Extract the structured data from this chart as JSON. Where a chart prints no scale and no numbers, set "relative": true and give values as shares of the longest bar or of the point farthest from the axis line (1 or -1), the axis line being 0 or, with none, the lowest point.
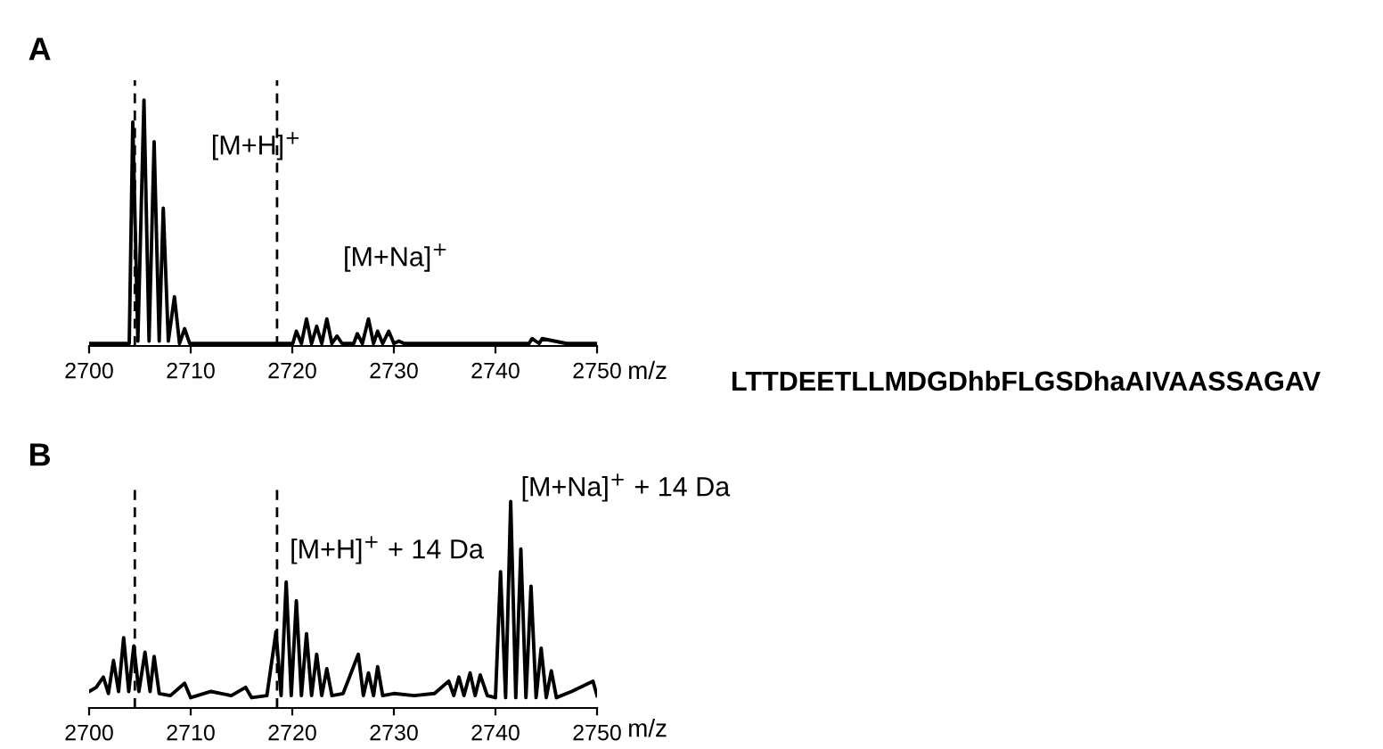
{
  "chart_data": [
    {
      "type": "line",
      "title": "A",
      "xlabel": "m/z",
      "relative": true,
      "xlim": [
        2700,
        2750
      ],
      "xticks": [
        2700,
        2710,
        2720,
        2730,
        2740,
        2750
      ],
      "grid": false,
      "legend": false,
      "marker": "none",
      "line_style": "solid",
      "tick_labels": "x",
      "ref_lines": [
        {
          "axis": "x",
          "value": 2704.5,
          "line_style": "dashed",
          "color": "#000000"
        },
        {
          "axis": "x",
          "value": 2718.5,
          "line_style": "dashed",
          "color": "#000000"
        }
      ],
      "annotations": [
        "[M+H]$^{+}$",
        "[M+Na]$^{+}$",
        "LTTDEETLLMDGDhbFLGSDhaAIVAASSAGAV"
      ],
      "series": [
        {
          "color": "#000000",
          "x": [
            2700,
            2702,
            2703.95,
            2704.3,
            2704.8,
            2705.4,
            2705.9,
            2706.4,
            2706.9,
            2707.3,
            2707.8,
            2708.4,
            2708.9,
            2709.4,
            2709.9,
            2712,
            2715,
            2718,
            2720.05,
            2720.4,
            2720.9,
            2721.4,
            2721.9,
            2722.4,
            2722.9,
            2723.4,
            2723.9,
            2724.4,
            2724.9,
            2726.05,
            2726.4,
            2726.9,
            2727.5,
            2728.0,
            2728.4,
            2728.9,
            2729.5,
            2730.0,
            2730.5,
            2731,
            2734,
            2738,
            2743.3,
            2743.6,
            2744.3,
            2744.6,
            2747,
            2750
          ],
          "values": [
            0.01,
            0.01,
            0.01,
            0.91,
            0.02,
            1.0,
            0.02,
            0.83,
            0.02,
            0.56,
            0.02,
            0.2,
            0.01,
            0.07,
            0.01,
            0.01,
            0.01,
            0.01,
            0.01,
            0.06,
            0.01,
            0.11,
            0.01,
            0.08,
            0.01,
            0.11,
            0.01,
            0.04,
            0.01,
            0.01,
            0.05,
            0.01,
            0.11,
            0.01,
            0.06,
            0.01,
            0.06,
            0.01,
            0.02,
            0.01,
            0.01,
            0.01,
            0.01,
            0.03,
            0.01,
            0.03,
            0.01,
            0.01
          ]
        }
      ]
    },
    {
      "type": "line",
      "title": "B",
      "xlabel": "m/z",
      "relative": true,
      "xlim": [
        2700,
        2750
      ],
      "xticks": [
        2700,
        2710,
        2720,
        2730,
        2740,
        2750
      ],
      "grid": false,
      "legend": false,
      "marker": "none",
      "line_style": "solid",
      "tick_labels": "x",
      "ref_lines": [
        {
          "axis": "x",
          "value": 2704.5,
          "line_style": "dashed",
          "color": "#000000"
        },
        {
          "axis": "x",
          "value": 2718.5,
          "line_style": "dashed",
          "color": "#000000"
        }
      ],
      "annotations": [
        "[M+H]$^{+}$ + 14 Da",
        "[M+Na]$^{+}$ + 14 Da"
      ],
      "series": [
        {
          "color": "#000000",
          "x": [
            2700,
            2700.7,
            2701.4,
            2701.9,
            2702.4,
            2702.9,
            2703.4,
            2703.9,
            2704.4,
            2704.9,
            2705.5,
            2706.0,
            2706.4,
            2706.9,
            2708,
            2709.4,
            2710,
            2712,
            2714,
            2715.4,
            2716,
            2717.5,
            2718.4,
            2718.9,
            2719.4,
            2719.9,
            2720.4,
            2720.9,
            2721.4,
            2721.9,
            2722.4,
            2722.9,
            2723.4,
            2723.9,
            2725,
            2726.5,
            2727.0,
            2727.5,
            2728.0,
            2728.4,
            2728.9,
            2730,
            2732,
            2734,
            2735.4,
            2735.9,
            2736.4,
            2736.9,
            2737.5,
            2738.0,
            2738.5,
            2739.2,
            2740.0,
            2740.5,
            2741.0,
            2741.5,
            2742.0,
            2742.5,
            2743.0,
            2743.5,
            2744.0,
            2744.5,
            2745.0,
            2745.5,
            2746.0,
            2747.5,
            2749.6,
            2750
          ],
          "values": [
            0.08,
            0.1,
            0.15,
            0.07,
            0.23,
            0.08,
            0.34,
            0.08,
            0.3,
            0.08,
            0.27,
            0.08,
            0.25,
            0.07,
            0.06,
            0.12,
            0.05,
            0.08,
            0.06,
            0.1,
            0.05,
            0.06,
            0.37,
            0.06,
            0.61,
            0.06,
            0.52,
            0.06,
            0.36,
            0.06,
            0.26,
            0.06,
            0.19,
            0.06,
            0.07,
            0.26,
            0.06,
            0.17,
            0.06,
            0.2,
            0.06,
            0.07,
            0.06,
            0.07,
            0.13,
            0.06,
            0.15,
            0.06,
            0.17,
            0.06,
            0.16,
            0.06,
            0.05,
            0.66,
            0.05,
            1.0,
            0.05,
            0.77,
            0.05,
            0.59,
            0.05,
            0.29,
            0.05,
            0.18,
            0.05,
            0.08,
            0.13,
            0.06
          ]
        }
      ]
    }
  ]
}
